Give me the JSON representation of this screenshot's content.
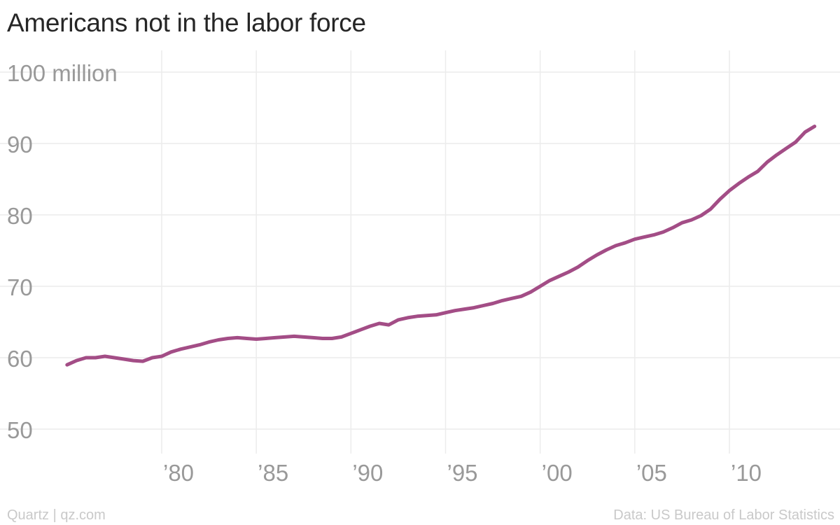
{
  "title": "Americans not in the labor force",
  "footer": {
    "credit": "Quartz | qz.com",
    "source": "Data: US Bureau of Labor Statistics"
  },
  "colors": {
    "line": "#a34d86",
    "grid": "#ececec",
    "tick_text": "#999999"
  },
  "chart_data": {
    "type": "line",
    "title": "Americans not in the labor force",
    "xlabel": "",
    "ylabel": "",
    "y_unit_label": "100 million",
    "ylim": [
      50,
      100
    ],
    "yticks": [
      50,
      60,
      70,
      80,
      90,
      100
    ],
    "ytick_labels": [
      "50",
      "60",
      "70",
      "80",
      "90",
      "100 million"
    ],
    "xlim": [
      1975,
      2014.6
    ],
    "xticks": [
      1980,
      1985,
      1990,
      1995,
      2000,
      2005,
      2010
    ],
    "xtick_labels": [
      "’80",
      "’85",
      "’90",
      "’95",
      "’00",
      "’05",
      "’10"
    ],
    "grid": true,
    "series": [
      {
        "name": "",
        "x": [
          1975.0,
          1975.5,
          1976.0,
          1976.5,
          1977.0,
          1977.5,
          1978.0,
          1978.5,
          1979.0,
          1979.5,
          1980.0,
          1980.5,
          1981.0,
          1981.5,
          1982.0,
          1982.5,
          1983.0,
          1983.5,
          1984.0,
          1984.5,
          1985.0,
          1985.5,
          1986.0,
          1986.5,
          1987.0,
          1987.5,
          1988.0,
          1988.5,
          1989.0,
          1989.5,
          1990.0,
          1990.5,
          1991.0,
          1991.5,
          1992.0,
          1992.5,
          1993.0,
          1993.5,
          1994.0,
          1994.5,
          1995.0,
          1995.5,
          1996.0,
          1996.5,
          1997.0,
          1997.5,
          1998.0,
          1998.5,
          1999.0,
          1999.5,
          2000.0,
          2000.5,
          2001.0,
          2001.5,
          2002.0,
          2002.5,
          2003.0,
          2003.5,
          2004.0,
          2004.5,
          2005.0,
          2005.5,
          2006.0,
          2006.5,
          2007.0,
          2007.5,
          2008.0,
          2008.5,
          2009.0,
          2009.5,
          2010.0,
          2010.5,
          2011.0,
          2011.5,
          2012.0,
          2012.5,
          2013.0,
          2013.5,
          2014.0,
          2014.5
        ],
        "values": [
          59.0,
          59.6,
          60.0,
          60.0,
          60.2,
          60.0,
          59.8,
          59.6,
          59.5,
          60.0,
          60.2,
          60.8,
          61.2,
          61.5,
          61.8,
          62.2,
          62.5,
          62.7,
          62.8,
          62.7,
          62.6,
          62.7,
          62.8,
          62.9,
          63.0,
          62.9,
          62.8,
          62.7,
          62.7,
          62.9,
          63.4,
          63.9,
          64.4,
          64.8,
          64.6,
          65.3,
          65.6,
          65.8,
          65.9,
          66.0,
          66.3,
          66.6,
          66.8,
          67.0,
          67.3,
          67.6,
          68.0,
          68.3,
          68.6,
          69.2,
          70.0,
          70.8,
          71.4,
          72.0,
          72.7,
          73.6,
          74.4,
          75.1,
          75.7,
          76.1,
          76.6,
          76.9,
          77.2,
          77.6,
          78.2,
          78.9,
          79.3,
          79.9,
          80.8,
          82.2,
          83.4,
          84.4,
          85.3,
          86.1,
          87.4,
          88.4,
          89.3,
          90.2,
          91.6,
          92.4
        ]
      }
    ]
  }
}
